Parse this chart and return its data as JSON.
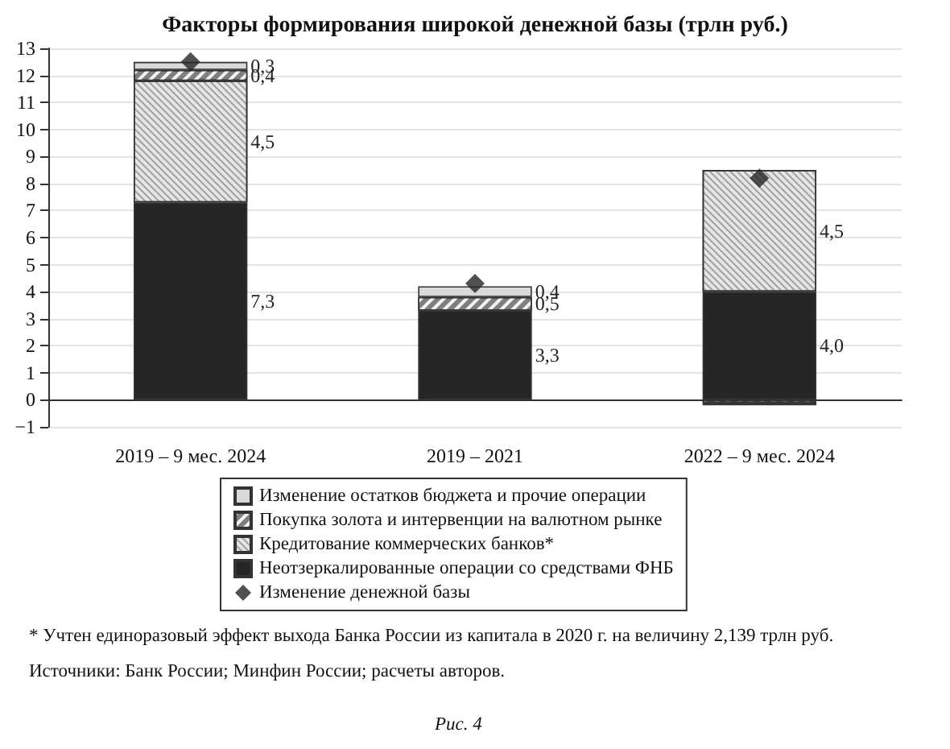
{
  "chart_data": {
    "type": "bar",
    "stacked": true,
    "title": "Факторы формирования широкой денежной базы (трлн руб.)",
    "categories": [
      "2019 – 9 мес. 2024",
      "2019 – 2021",
      "2022 – 9 мес. 2024"
    ],
    "series": [
      {
        "name": "Неотзеркалированные операции со средствами ФНБ",
        "color": "#262626",
        "values": [
          7.3,
          3.3,
          4.0
        ],
        "value_labels": [
          "7,3",
          "3,3",
          "4,0"
        ]
      },
      {
        "name": "Кредитование коммерческих банков*",
        "color": "#e6e6e6",
        "values": [
          4.5,
          null,
          4.5
        ],
        "value_labels": [
          "4,5",
          null,
          "4,5"
        ]
      },
      {
        "name": "Покупка золота и интервенции на валютном рынке",
        "color": "#7f7f7f",
        "values": [
          0.4,
          0.5,
          -0.1
        ],
        "value_labels": [
          "0,4",
          "0,5",
          null
        ]
      },
      {
        "name": "Изменение остатков бюджета и прочие операции",
        "color": "#d9d9d9",
        "values": [
          0.3,
          0.4,
          -0.1
        ],
        "value_labels": [
          "0,3",
          "0,4",
          null
        ]
      },
      {
        "name": "Изменение денежной базы",
        "type": "scatter",
        "marker": "diamond",
        "color": "#262626",
        "x": [
          "2019 – 9 мес. 2024",
          "2019 – 2021",
          "2022 – 9 мес. 2024"
        ],
        "values": [
          12.5,
          4.3,
          8.2
        ]
      }
    ],
    "ylim": [
      -1,
      13
    ],
    "yticks": [
      -1,
      0,
      1,
      2,
      3,
      4,
      5,
      6,
      7,
      8,
      9,
      10,
      11,
      12,
      13
    ],
    "grid": "y",
    "legend": "bottom",
    "annotations": [
      "* Учтен единоразовый эффект выхода Банка России из капитала в 2020 г. на величину 2,139 трлн руб.",
      "Источники: Банк России; Минфин России; расчеты авторов.",
      "Рис. 4"
    ]
  }
}
